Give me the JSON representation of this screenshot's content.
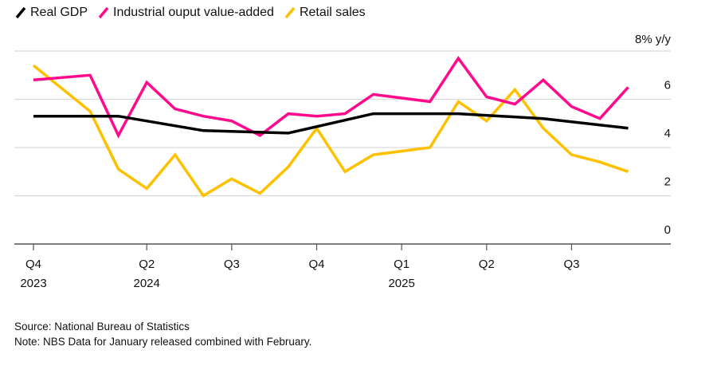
{
  "chart_data": {
    "type": "line",
    "title": "",
    "xlabel": "",
    "ylabel": "% y/y",
    "ylim": [
      0,
      8
    ],
    "y_ticks": [
      {
        "value": 0,
        "label": "0"
      },
      {
        "value": 2,
        "label": "2"
      },
      {
        "value": 4,
        "label": "4"
      },
      {
        "value": 6,
        "label": "6"
      },
      {
        "value": 8,
        "label": "8% y/y"
      }
    ],
    "grid": true,
    "legend_position": "top-left",
    "x_ticks": [
      {
        "month_index": 0,
        "label": "Q4",
        "sublabel": "2023"
      },
      {
        "month_index": 4,
        "label": "Q2",
        "sublabel": "2024"
      },
      {
        "month_index": 7,
        "label": "Q3",
        "sublabel": ""
      },
      {
        "month_index": 10,
        "label": "Q4",
        "sublabel": ""
      },
      {
        "month_index": 13,
        "label": "Q1",
        "sublabel": "2025"
      },
      {
        "month_index": 16,
        "label": "Q2",
        "sublabel": ""
      },
      {
        "month_index": 19,
        "label": "Q3",
        "sublabel": ""
      }
    ],
    "x_range_months": [
      -0.6,
      22.6
    ],
    "series": [
      {
        "name": "Real GDP",
        "color": "#000000",
        "points": [
          {
            "month_index": 0,
            "value": 5.3
          },
          {
            "month_index": 3,
            "value": 5.3
          },
          {
            "month_index": 6,
            "value": 4.7
          },
          {
            "month_index": 9,
            "value": 4.6
          },
          {
            "month_index": 12,
            "value": 5.4
          },
          {
            "month_index": 15,
            "value": 5.4
          },
          {
            "month_index": 18,
            "value": 5.2
          },
          {
            "month_index": 21,
            "value": 4.8
          }
        ]
      },
      {
        "name": "Industrial ouput value-added",
        "color": "#ff0a8c",
        "points": [
          {
            "month_index": 0,
            "value": 6.8
          },
          {
            "month_index": 2,
            "value": 7.0
          },
          {
            "month_index": 3,
            "value": 4.5
          },
          {
            "month_index": 4,
            "value": 6.7
          },
          {
            "month_index": 5,
            "value": 5.6
          },
          {
            "month_index": 6,
            "value": 5.3
          },
          {
            "month_index": 7,
            "value": 5.1
          },
          {
            "month_index": 8,
            "value": 4.5
          },
          {
            "month_index": 9,
            "value": 5.4
          },
          {
            "month_index": 10,
            "value": 5.3
          },
          {
            "month_index": 11,
            "value": 5.4
          },
          {
            "month_index": 12,
            "value": 6.2
          },
          {
            "month_index": 14,
            "value": 5.9
          },
          {
            "month_index": 15,
            "value": 7.7
          },
          {
            "month_index": 16,
            "value": 6.1
          },
          {
            "month_index": 17,
            "value": 5.8
          },
          {
            "month_index": 18,
            "value": 6.8
          },
          {
            "month_index": 19,
            "value": 5.7
          },
          {
            "month_index": 20,
            "value": 5.2
          },
          {
            "month_index": 21,
            "value": 6.5
          }
        ]
      },
      {
        "name": "Retail sales",
        "color": "#ffc000",
        "points": [
          {
            "month_index": 0,
            "value": 7.4
          },
          {
            "month_index": 2,
            "value": 5.5
          },
          {
            "month_index": 3,
            "value": 3.1
          },
          {
            "month_index": 4,
            "value": 2.3
          },
          {
            "month_index": 5,
            "value": 3.7
          },
          {
            "month_index": 6,
            "value": 2.0
          },
          {
            "month_index": 7,
            "value": 2.7
          },
          {
            "month_index": 8,
            "value": 2.1
          },
          {
            "month_index": 9,
            "value": 3.2
          },
          {
            "month_index": 10,
            "value": 4.8
          },
          {
            "month_index": 11,
            "value": 3.0
          },
          {
            "month_index": 12,
            "value": 3.7
          },
          {
            "month_index": 14,
            "value": 4.0
          },
          {
            "month_index": 15,
            "value": 5.9
          },
          {
            "month_index": 16,
            "value": 5.1
          },
          {
            "month_index": 17,
            "value": 6.4
          },
          {
            "month_index": 18,
            "value": 4.8
          },
          {
            "month_index": 19,
            "value": 3.7
          },
          {
            "month_index": 20,
            "value": 3.4
          },
          {
            "month_index": 21,
            "value": 3.0
          }
        ]
      }
    ]
  },
  "legend": {
    "items": [
      {
        "label": "Real GDP",
        "color": "#000000"
      },
      {
        "label": "Industrial ouput value-added",
        "color": "#ff0a8c"
      },
      {
        "label": "Retail sales",
        "color": "#ffc000"
      }
    ]
  },
  "footer": {
    "source": "Source: National Bureau of Statistics",
    "note": "Note: NBS Data for January released combined with February."
  }
}
